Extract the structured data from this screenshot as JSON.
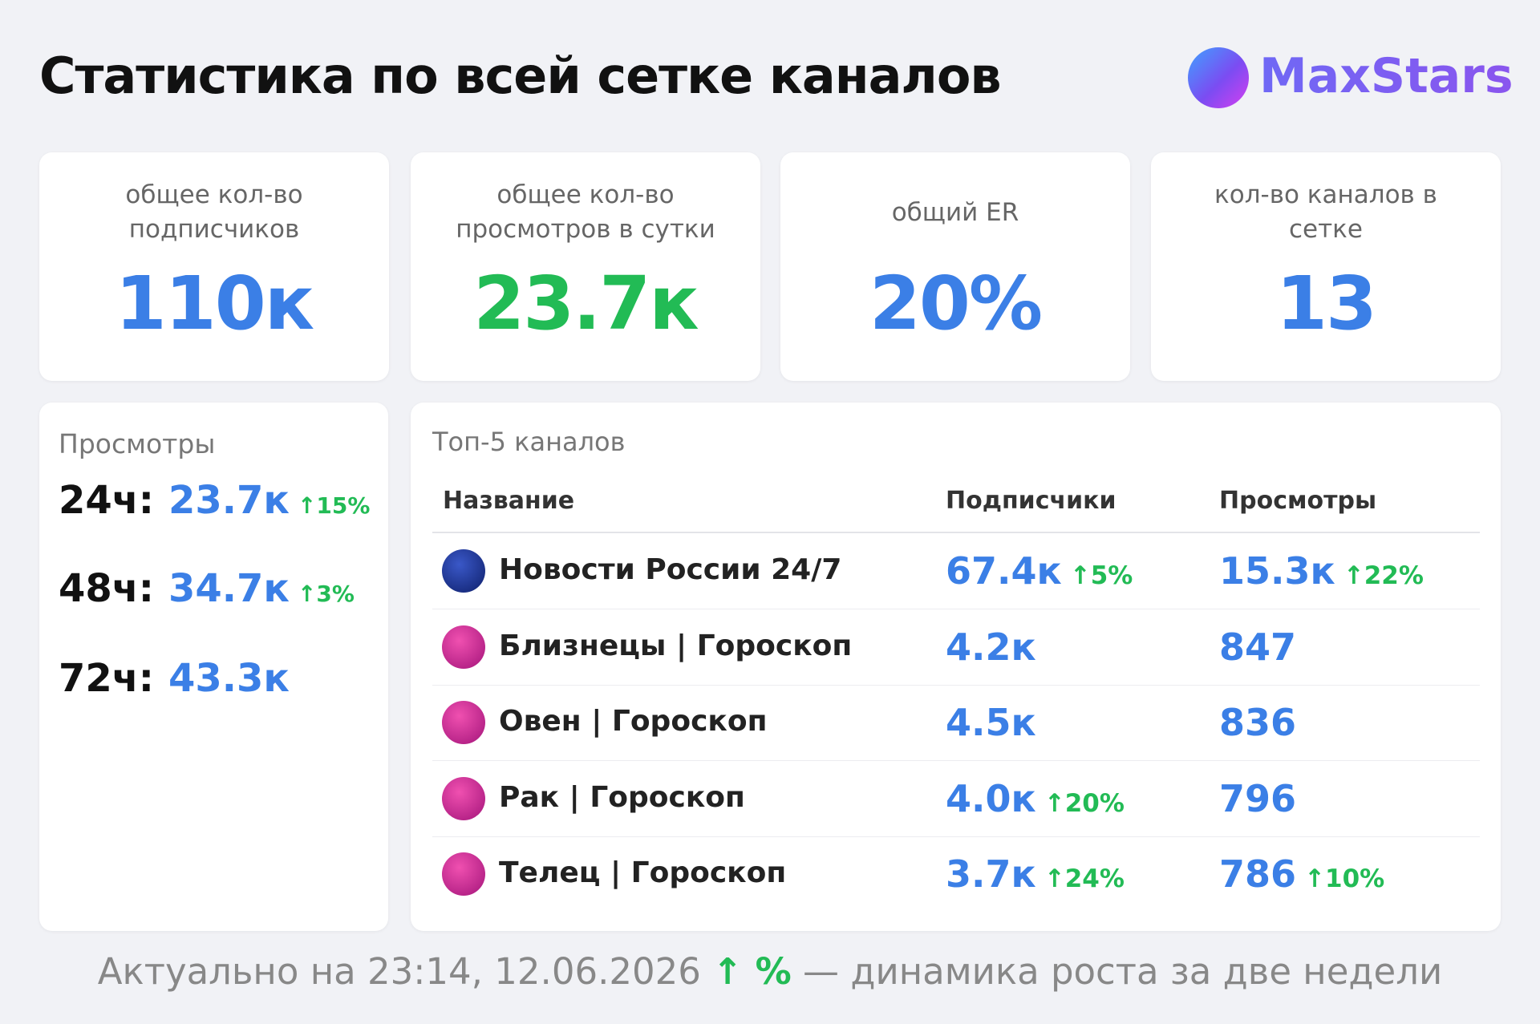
{
  "header": {
    "title": "Статистика по всей сетке каналов",
    "logo": "MaxStars"
  },
  "cards": [
    {
      "label": "общее кол-во подписчиков",
      "value": "110к",
      "color": "#3b7fe6"
    },
    {
      "label": "общее кол-во просмотров в сутки",
      "value": "23.7к",
      "color": "#22bb55"
    },
    {
      "label": "общий ER",
      "value": "20%",
      "color": "#3b7fe6"
    },
    {
      "label": "кол-во каналов в сетке",
      "value": "13",
      "color": "#3b7fe6"
    }
  ],
  "views": {
    "title": "Просмотры",
    "rows": [
      {
        "period": "24ч:",
        "value": "23.7к",
        "change": "↑15%"
      },
      {
        "period": "48ч:",
        "value": "34.7к",
        "change": "↑3%"
      },
      {
        "period": "72ч:",
        "value": "43.3к"
      }
    ]
  },
  "top": {
    "title": "Топ-5 каналов",
    "columns": [
      "Название",
      "Подписчики",
      "Просмотры"
    ],
    "rows": [
      {
        "name": "Новости России 24/7",
        "subscribers": "67.4к",
        "subscribers_change": "↑5%",
        "views": "15.3к",
        "views_change": "↑22%"
      },
      {
        "name": "Близнецы | Гороскоп",
        "subscribers": "4.2к",
        "views": "847"
      },
      {
        "name": "Овен | Гороскоп",
        "subscribers": "4.5к",
        "views": "836"
      },
      {
        "name": "Рак | Гороскоп",
        "subscribers": "4.0к",
        "subscribers_change": "↑20%",
        "views": "796"
      },
      {
        "name": "Телец | Гороскоп",
        "subscribers": "3.7к",
        "subscribers_change": "↑24%",
        "views": "786",
        "views_change": "↑10%"
      }
    ]
  },
  "footer": {
    "updated": "Актуально на 23:14, 12.06.2026",
    "legend_mark": "↑ %",
    "legend_text": "— динамика роста за две недели"
  }
}
